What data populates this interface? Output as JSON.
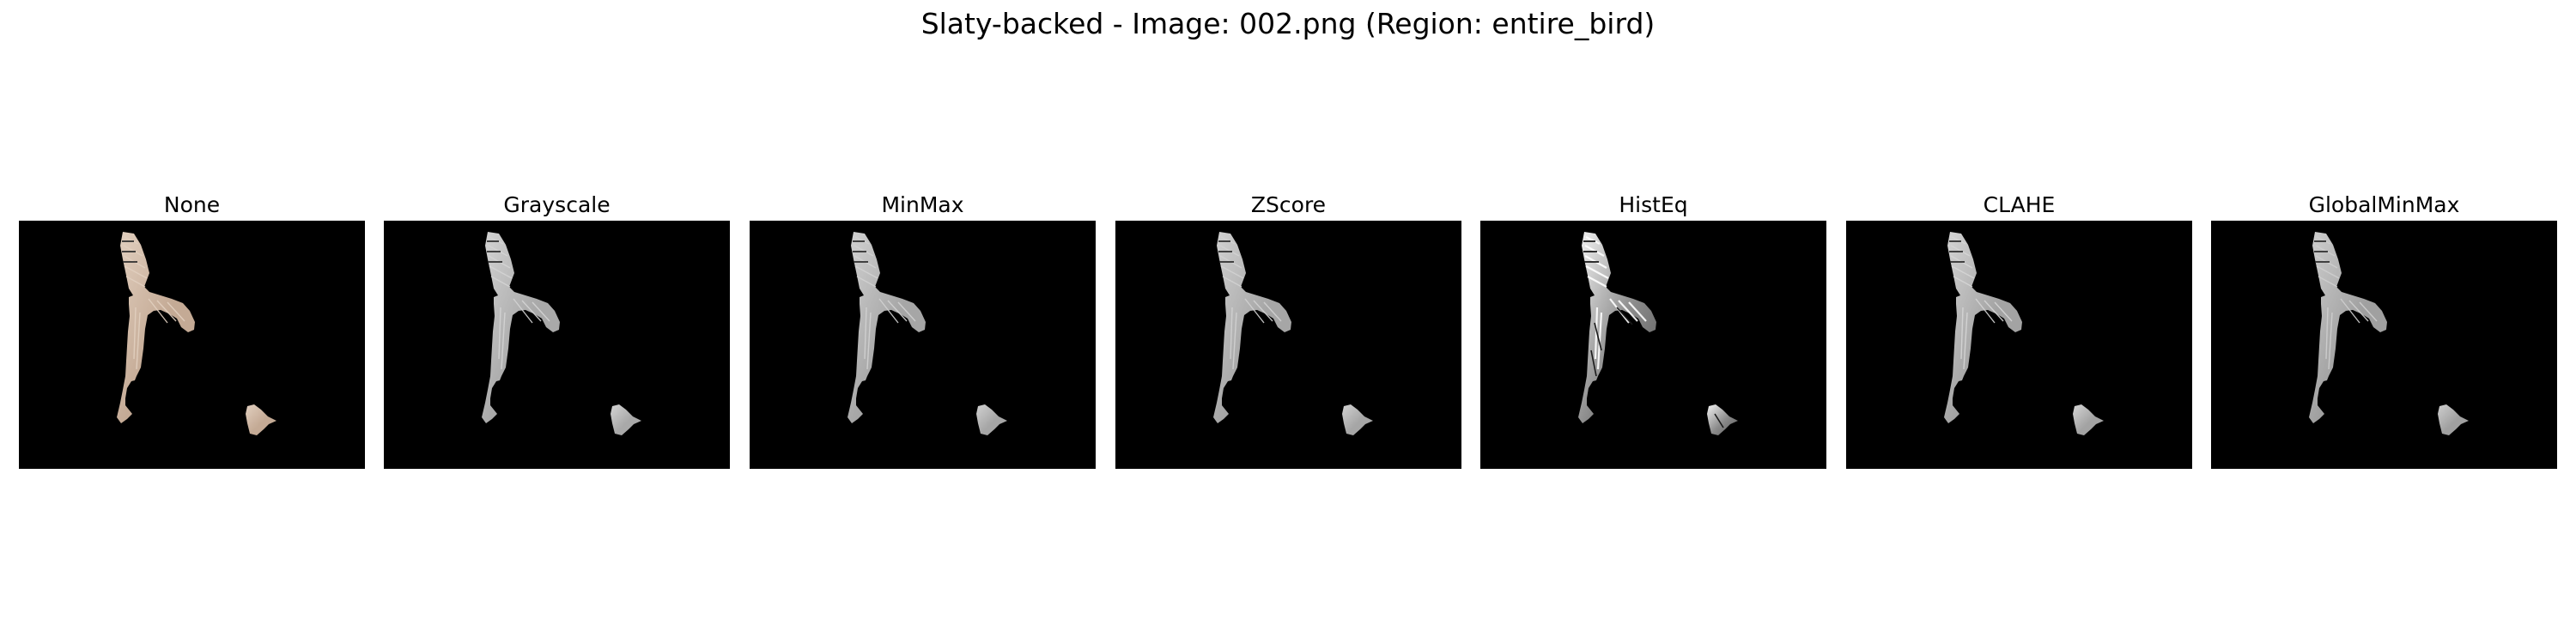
{
  "figure": {
    "title": "Slaty-backed - Image: 002.png (Region: entire_bird)"
  },
  "panels": [
    {
      "label": "None",
      "tint": "#c4aa95",
      "tint_light": "#e2d0c0",
      "contrast": "normal"
    },
    {
      "label": "Grayscale",
      "tint": "#a9a9a9",
      "tint_light": "#d4d4d4",
      "contrast": "normal"
    },
    {
      "label": "MinMax",
      "tint": "#a6a6a6",
      "tint_light": "#d2d2d2",
      "contrast": "normal"
    },
    {
      "label": "ZScore",
      "tint": "#a6a6a6",
      "tint_light": "#d2d2d2",
      "contrast": "normal"
    },
    {
      "label": "HistEq",
      "tint": "#8a8a8a",
      "tint_light": "#f4f4f4",
      "contrast": "high"
    },
    {
      "label": "CLAHE",
      "tint": "#a3a3a3",
      "tint_light": "#d6d6d6",
      "contrast": "normal"
    },
    {
      "label": "GlobalMinMax",
      "tint": "#a0a0a0",
      "tint_light": "#cfcfcf",
      "contrast": "normal"
    }
  ]
}
